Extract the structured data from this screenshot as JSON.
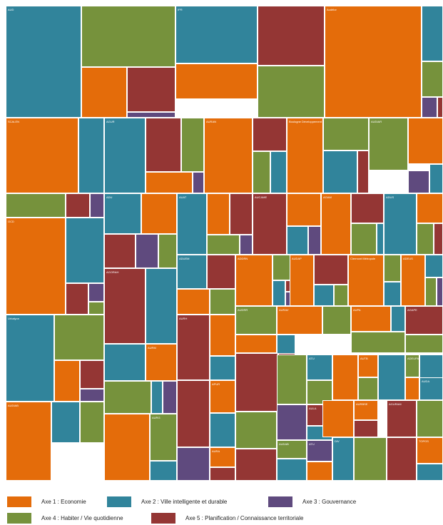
{
  "chart_data": {
    "type": "treemap",
    "colors": {
      "economie": "#e46c0a",
      "ville": "#31849b",
      "gouvernance": "#5f4a7e",
      "habiter": "#76923c",
      "planification": "#943634"
    },
    "legend": [
      {
        "key": "economie",
        "label": "Axe 1 : Economie"
      },
      {
        "key": "ville",
        "label": "Axe 2 : Ville intelligente et durable"
      },
      {
        "key": "gouvernance",
        "label": "Axe 3 : Gouvernance"
      },
      {
        "key": "habiter",
        "label": "Axe 4 : Habiter / Vie quotidienne"
      },
      {
        "key": "planification",
        "label": "Axe 5 : Planification / Connaissance territoriale"
      }
    ],
    "groups": [
      {
        "name": "AUD"
      },
      {
        "name": "IPR"
      },
      {
        "name": "Audélor"
      },
      {
        "name": "SCALEN"
      },
      {
        "name": "AGUR"
      },
      {
        "name": "AURAN"
      },
      {
        "name": "Boulogne Développement"
      },
      {
        "name": "AUDIAR"
      },
      {
        "name": "ADU"
      },
      {
        "name": "AUAT"
      },
      {
        "name": "AUCAME"
      },
      {
        "name": "AGAM"
      },
      {
        "name": "ADUS"
      },
      {
        "name": "OCD"
      },
      {
        "name": "AGORAH"
      },
      {
        "name": "ADUEM"
      },
      {
        "name": "ADDRN"
      },
      {
        "name": "AUDAP"
      },
      {
        "name": "Clermont Métropole"
      },
      {
        "name": "ADEUS"
      },
      {
        "name": "Urbalyon"
      },
      {
        "name": "AUDIAB"
      },
      {
        "name": "AURH"
      },
      {
        "name": "AUDRR"
      },
      {
        "name": "AURAV"
      },
      {
        "name": "AUPA"
      },
      {
        "name": "AGAPE"
      },
      {
        "name": "AURM"
      },
      {
        "name": "AURCA"
      },
      {
        "name": "ATU"
      },
      {
        "name": "AUTB"
      },
      {
        "name": "ADEUPA"
      },
      {
        "name": "AUDA"
      },
      {
        "name": "AURG"
      },
      {
        "name": "APUR"
      },
      {
        "name": "EPURES"
      },
      {
        "name": "AUDC"
      },
      {
        "name": "AULA"
      },
      {
        "name": "AURBSE"
      },
      {
        "name": "AUGER-VAR"
      },
      {
        "name": "AGURAM"
      },
      {
        "name": "ADEUPa"
      },
      {
        "name": "AURA"
      },
      {
        "name": "AUDAB"
      },
      {
        "name": "ATU"
      },
      {
        "name": "DIV"
      },
      {
        "name": "ADURAB"
      },
      {
        "name": "AUDAG"
      },
      {
        "name": "TOPOS"
      }
    ],
    "cells": [
      {
        "name": "AUD",
        "key": "ville"
      },
      {
        "name": "",
        "key": "habiter"
      },
      {
        "name": "",
        "key": "economie"
      },
      {
        "name": "",
        "key": "planification"
      },
      {
        "name": "",
        "key": "gouvernance"
      },
      {
        "name": "IPR",
        "key": "ville"
      },
      {
        "name": "",
        "key": "economie"
      },
      {
        "name": "",
        "key": "planification"
      },
      {
        "name": "",
        "key": "habiter"
      },
      {
        "name": "Audélor",
        "key": "economie"
      },
      {
        "name": "",
        "key": "ville"
      },
      {
        "name": "",
        "key": "habiter"
      },
      {
        "name": "",
        "key": "gouvernance"
      },
      {
        "name": "",
        "key": "planification"
      },
      {
        "name": "SCALEN",
        "key": "economie"
      },
      {
        "name": "",
        "key": "ville"
      },
      {
        "name": "AGUR",
        "key": "ville"
      },
      {
        "name": "",
        "key": "planification"
      },
      {
        "name": "",
        "key": "habiter"
      },
      {
        "name": "",
        "key": "economie"
      },
      {
        "name": "",
        "key": "gouvernance"
      },
      {
        "name": "AURAN",
        "key": "economie"
      },
      {
        "name": "",
        "key": "planification"
      },
      {
        "name": "",
        "key": "habiter"
      },
      {
        "name": "",
        "key": "ville"
      },
      {
        "name": "Boulogne Développement",
        "key": "economie"
      },
      {
        "name": "",
        "key": "habiter"
      },
      {
        "name": "",
        "key": "ville"
      },
      {
        "name": "",
        "key": "planification"
      },
      {
        "name": "AUDIAR",
        "key": "habiter"
      },
      {
        "name": "",
        "key": "economie"
      },
      {
        "name": "",
        "key": "gouvernance"
      },
      {
        "name": "",
        "key": "ville"
      },
      {
        "name": "",
        "key": "habiter"
      },
      {
        "name": "",
        "key": "planification"
      },
      {
        "name": "",
        "key": "gouvernance"
      },
      {
        "name": "ADU",
        "key": "ville"
      },
      {
        "name": "",
        "key": "economie"
      },
      {
        "name": "",
        "key": "planification"
      },
      {
        "name": "",
        "key": "gouvernance"
      },
      {
        "name": "",
        "key": "habiter"
      },
      {
        "name": "AUAT",
        "key": "ville"
      },
      {
        "name": "",
        "key": "economie"
      },
      {
        "name": "",
        "key": "planification"
      },
      {
        "name": "",
        "key": "habiter"
      },
      {
        "name": "",
        "key": "gouvernance"
      },
      {
        "name": "AUCAME",
        "key": "planification"
      },
      {
        "name": "",
        "key": "economie"
      },
      {
        "name": "",
        "key": "ville"
      },
      {
        "name": "",
        "key": "gouvernance"
      },
      {
        "name": "AGAM",
        "key": "economie"
      },
      {
        "name": "",
        "key": "planification"
      },
      {
        "name": "",
        "key": "habiter"
      },
      {
        "name": "",
        "key": "ville"
      },
      {
        "name": "ADUS",
        "key": "ville"
      },
      {
        "name": "",
        "key": "economie"
      },
      {
        "name": "",
        "key": "habiter"
      },
      {
        "name": "",
        "key": "planification"
      },
      {
        "name": "OCD",
        "key": "economie"
      },
      {
        "name": "",
        "key": "ville"
      },
      {
        "name": "",
        "key": "planification"
      },
      {
        "name": "",
        "key": "gouvernance"
      },
      {
        "name": "",
        "key": "habiter"
      },
      {
        "name": "AGORAH",
        "key": "planification"
      },
      {
        "name": "",
        "key": "ville"
      },
      {
        "name": "",
        "key": "habiter"
      },
      {
        "name": "ADUEM",
        "key": "ville"
      },
      {
        "name": "",
        "key": "planification"
      },
      {
        "name": "",
        "key": "economie"
      },
      {
        "name": "",
        "key": "habiter"
      },
      {
        "name": "ADDRN",
        "key": "economie"
      },
      {
        "name": "",
        "key": "habiter"
      },
      {
        "name": "",
        "key": "ville"
      },
      {
        "name": "",
        "key": "planification"
      },
      {
        "name": "",
        "key": "gouvernance"
      },
      {
        "name": "AUDAP",
        "key": "economie"
      },
      {
        "name": "",
        "key": "planification"
      },
      {
        "name": "",
        "key": "ville"
      },
      {
        "name": "",
        "key": "habiter"
      },
      {
        "name": "Clermont Métropole",
        "key": "economie"
      },
      {
        "name": "",
        "key": "habiter"
      },
      {
        "name": "",
        "key": "ville"
      },
      {
        "name": "ADEUS",
        "key": "economie"
      },
      {
        "name": "",
        "key": "ville"
      },
      {
        "name": "",
        "key": "habiter"
      },
      {
        "name": "",
        "key": "gouvernance"
      },
      {
        "name": "Urbalyon",
        "key": "ville"
      },
      {
        "name": "",
        "key": "habiter"
      },
      {
        "name": "",
        "key": "economie"
      },
      {
        "name": "",
        "key": "planification"
      },
      {
        "name": "",
        "key": "gouvernance"
      },
      {
        "name": "AUDIAB",
        "key": "economie"
      },
      {
        "name": "",
        "key": "ville"
      },
      {
        "name": "",
        "key": "habiter"
      },
      {
        "name": "AURH",
        "key": "planification"
      },
      {
        "name": "",
        "key": "economie"
      },
      {
        "name": "",
        "key": "ville"
      },
      {
        "name": "AUDRR",
        "key": "habiter"
      },
      {
        "name": "",
        "key": "planification"
      },
      {
        "name": "",
        "key": "economie"
      },
      {
        "name": "AURAV",
        "key": "economie"
      },
      {
        "name": "",
        "key": "habiter"
      },
      {
        "name": "",
        "key": "ville"
      },
      {
        "name": "AUPA",
        "key": "economie"
      },
      {
        "name": "",
        "key": "ville"
      },
      {
        "name": "",
        "key": "habiter"
      },
      {
        "name": "AGAPE",
        "key": "planification"
      },
      {
        "name": "",
        "key": "habiter"
      },
      {
        "name": "",
        "key": "ville"
      },
      {
        "name": "AURM",
        "key": "economie"
      },
      {
        "name": "",
        "key": "habiter"
      },
      {
        "name": "",
        "key": "ville"
      },
      {
        "name": "",
        "key": "gouvernance"
      },
      {
        "name": "",
        "key": "planification"
      },
      {
        "name": "AURCA",
        "key": "planification"
      },
      {
        "name": "",
        "key": "ville"
      },
      {
        "name": "",
        "key": "habiter"
      },
      {
        "name": "ATU",
        "key": "ville"
      },
      {
        "name": "",
        "key": "habiter"
      },
      {
        "name": "",
        "key": "economie"
      },
      {
        "name": "AUTB",
        "key": "economie"
      },
      {
        "name": "",
        "key": "habiter"
      },
      {
        "name": "",
        "key": "ville"
      },
      {
        "name": "ADEUPA",
        "key": "habiter"
      },
      {
        "name": "",
        "key": "economie"
      },
      {
        "name": "",
        "key": "ville"
      },
      {
        "name": "AUDA",
        "key": "ville"
      },
      {
        "name": "",
        "key": "planification"
      },
      {
        "name": "",
        "key": "economie"
      },
      {
        "name": "AURG",
        "key": "habiter"
      },
      {
        "name": "",
        "key": "ville"
      },
      {
        "name": "",
        "key": "planification"
      },
      {
        "name": "APUR",
        "key": "economie"
      },
      {
        "name": "",
        "key": "ville"
      },
      {
        "name": "",
        "key": "habiter"
      },
      {
        "name": "",
        "key": "planification"
      },
      {
        "name": "",
        "key": "gouvernance"
      },
      {
        "name": "EPURES",
        "key": "habiter"
      },
      {
        "name": "",
        "key": "economie"
      },
      {
        "name": "",
        "key": "planification"
      },
      {
        "name": "",
        "key": "ville"
      },
      {
        "name": "AUDC",
        "key": "planification"
      },
      {
        "name": "",
        "key": "habiter"
      },
      {
        "name": "",
        "key": "gouvernance"
      },
      {
        "name": "AULA",
        "key": "planification"
      },
      {
        "name": "",
        "key": "ville"
      },
      {
        "name": "",
        "key": "economie"
      },
      {
        "name": "AURBSE",
        "key": "economie"
      },
      {
        "name": "",
        "key": "planification"
      },
      {
        "name": "AUGER-VAR",
        "key": "economie"
      },
      {
        "name": "",
        "key": "habiter"
      },
      {
        "name": "AGURAM",
        "key": "planification"
      },
      {
        "name": "",
        "key": "habiter"
      },
      {
        "name": "ADEUPa",
        "key": "planification"
      },
      {
        "name": "",
        "key": "ville"
      },
      {
        "name": "",
        "key": "gouvernance"
      },
      {
        "name": "AURA",
        "key": "economie"
      },
      {
        "name": "",
        "key": "planification"
      },
      {
        "name": "",
        "key": "habiter"
      },
      {
        "name": "AUDAB",
        "key": "habiter"
      },
      {
        "name": "",
        "key": "planification"
      },
      {
        "name": "",
        "key": "ville"
      },
      {
        "name": "ATU",
        "key": "gouvernance"
      },
      {
        "name": "",
        "key": "economie"
      },
      {
        "name": "DIV",
        "key": "ville"
      },
      {
        "name": "",
        "key": "planification"
      },
      {
        "name": "",
        "key": "habiter"
      },
      {
        "name": "ADURAB",
        "key": "ville"
      },
      {
        "name": "",
        "key": "economie"
      },
      {
        "name": "",
        "key": "planification"
      },
      {
        "name": "AUDAG",
        "key": "planification"
      },
      {
        "name": "",
        "key": "habiter"
      },
      {
        "name": "TOPOS",
        "key": "economie"
      },
      {
        "name": "",
        "key": "ville"
      }
    ]
  }
}
